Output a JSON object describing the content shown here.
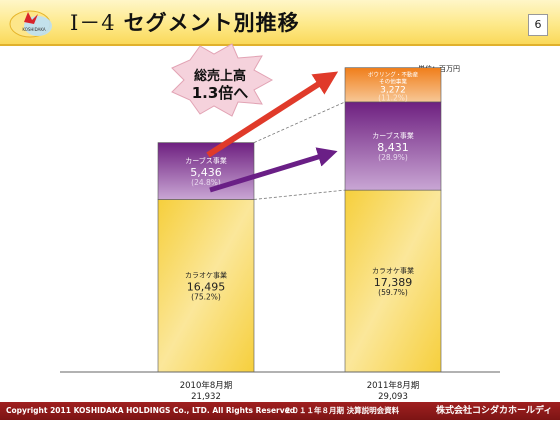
{
  "header": {
    "title_num": "Ⅰ－4",
    "title_text": "セグメント別推移",
    "page_number": "6"
  },
  "unit_label": "単位：百万円",
  "callout": {
    "line1": "総売上高",
    "line2": "1.3倍へ"
  },
  "chart_data": {
    "type": "bar",
    "stacked": true,
    "categories": [
      "2010年8月期",
      "2011年8月期"
    ],
    "totals": [
      "21,932",
      "29,093"
    ],
    "series": [
      {
        "name": "カラオケ事業",
        "values": [
          16495,
          17389
        ],
        "value_labels": [
          "16,495",
          "17,389"
        ],
        "pct_labels": [
          "(75.2%)",
          "(59.7%)"
        ],
        "color": "#f5c82e"
      },
      {
        "name": "カーブス事業",
        "values": [
          5436,
          8431
        ],
        "value_labels": [
          "5,436",
          "8,431"
        ],
        "pct_labels": [
          "(24.8%)",
          "(28.9%)"
        ],
        "color": "#7b2a86"
      },
      {
        "name": "ボウリング・不動産管理・その他事業",
        "values": [
          0,
          3272
        ],
        "value_labels": [
          "",
          "3,272"
        ],
        "pct_labels": [
          "",
          "(11.2%)"
        ],
        "color": "#f08a20"
      }
    ]
  },
  "footer": {
    "copyright": "Copyright 2011 KOSHIDAKA HOLDINGS Co., LTD. All Rights Reserved",
    "doc_title": "２０１１年８月期 決算説明会資料",
    "company": "株式会社コシダカホールディングス"
  },
  "colors": {
    "header": "#fad95a",
    "footer": "#8a1818",
    "arrow_red": "#e03a2a",
    "arrow_purple": "#6a1f86",
    "callout_fill": "#f5d2dc"
  }
}
